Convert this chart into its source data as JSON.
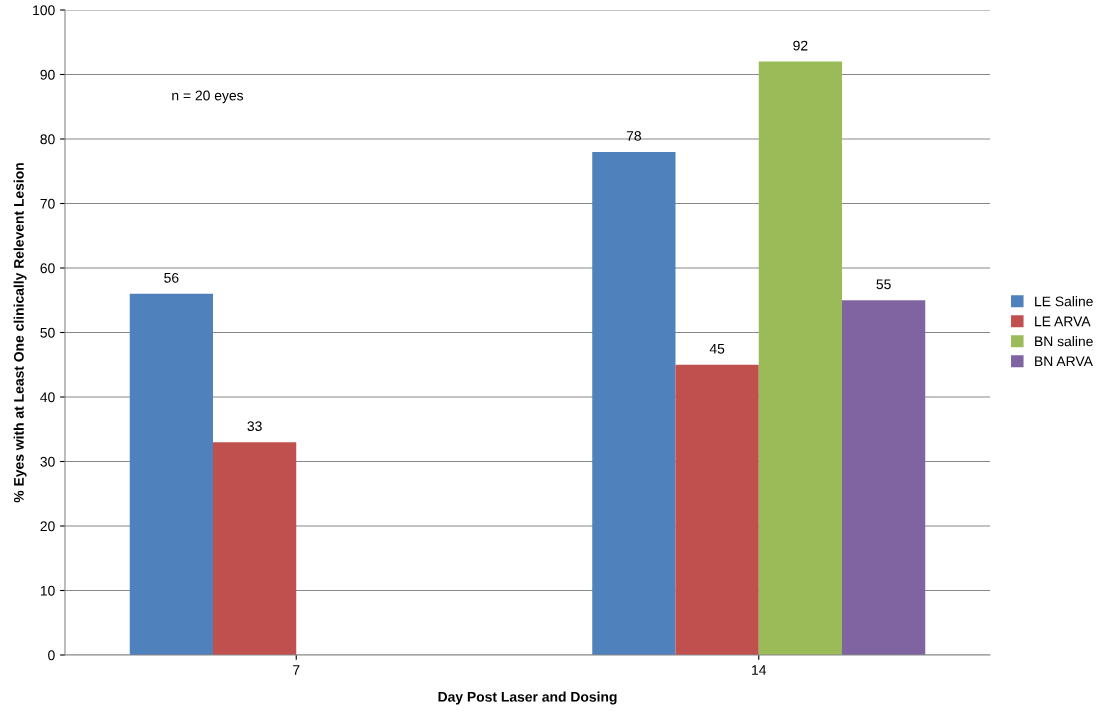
{
  "chart_data": {
    "type": "bar",
    "xlabel": "Day Post Laser and Dosing",
    "ylabel": "% Eyes with at Least One clinically Relevent Lesion",
    "categories": [
      "7",
      "14"
    ],
    "series": [
      {
        "name": "LE Saline",
        "color": "#4f81bd",
        "values": [
          56,
          78
        ]
      },
      {
        "name": "LE ARVA",
        "color": "#c0504d",
        "values": [
          33,
          45
        ]
      },
      {
        "name": "BN saline",
        "color": "#9bbb59",
        "values": [
          null,
          92
        ]
      },
      {
        "name": "BN ARVA",
        "color": "#8064a2",
        "values": [
          null,
          55
        ]
      }
    ],
    "ylim": [
      0,
      100
    ],
    "yticks": [
      0,
      10,
      20,
      30,
      40,
      50,
      60,
      70,
      80,
      90,
      100
    ],
    "grid": "y",
    "legend": "right",
    "data_labels": true,
    "annotations": [
      "n = 20 eyes"
    ]
  }
}
